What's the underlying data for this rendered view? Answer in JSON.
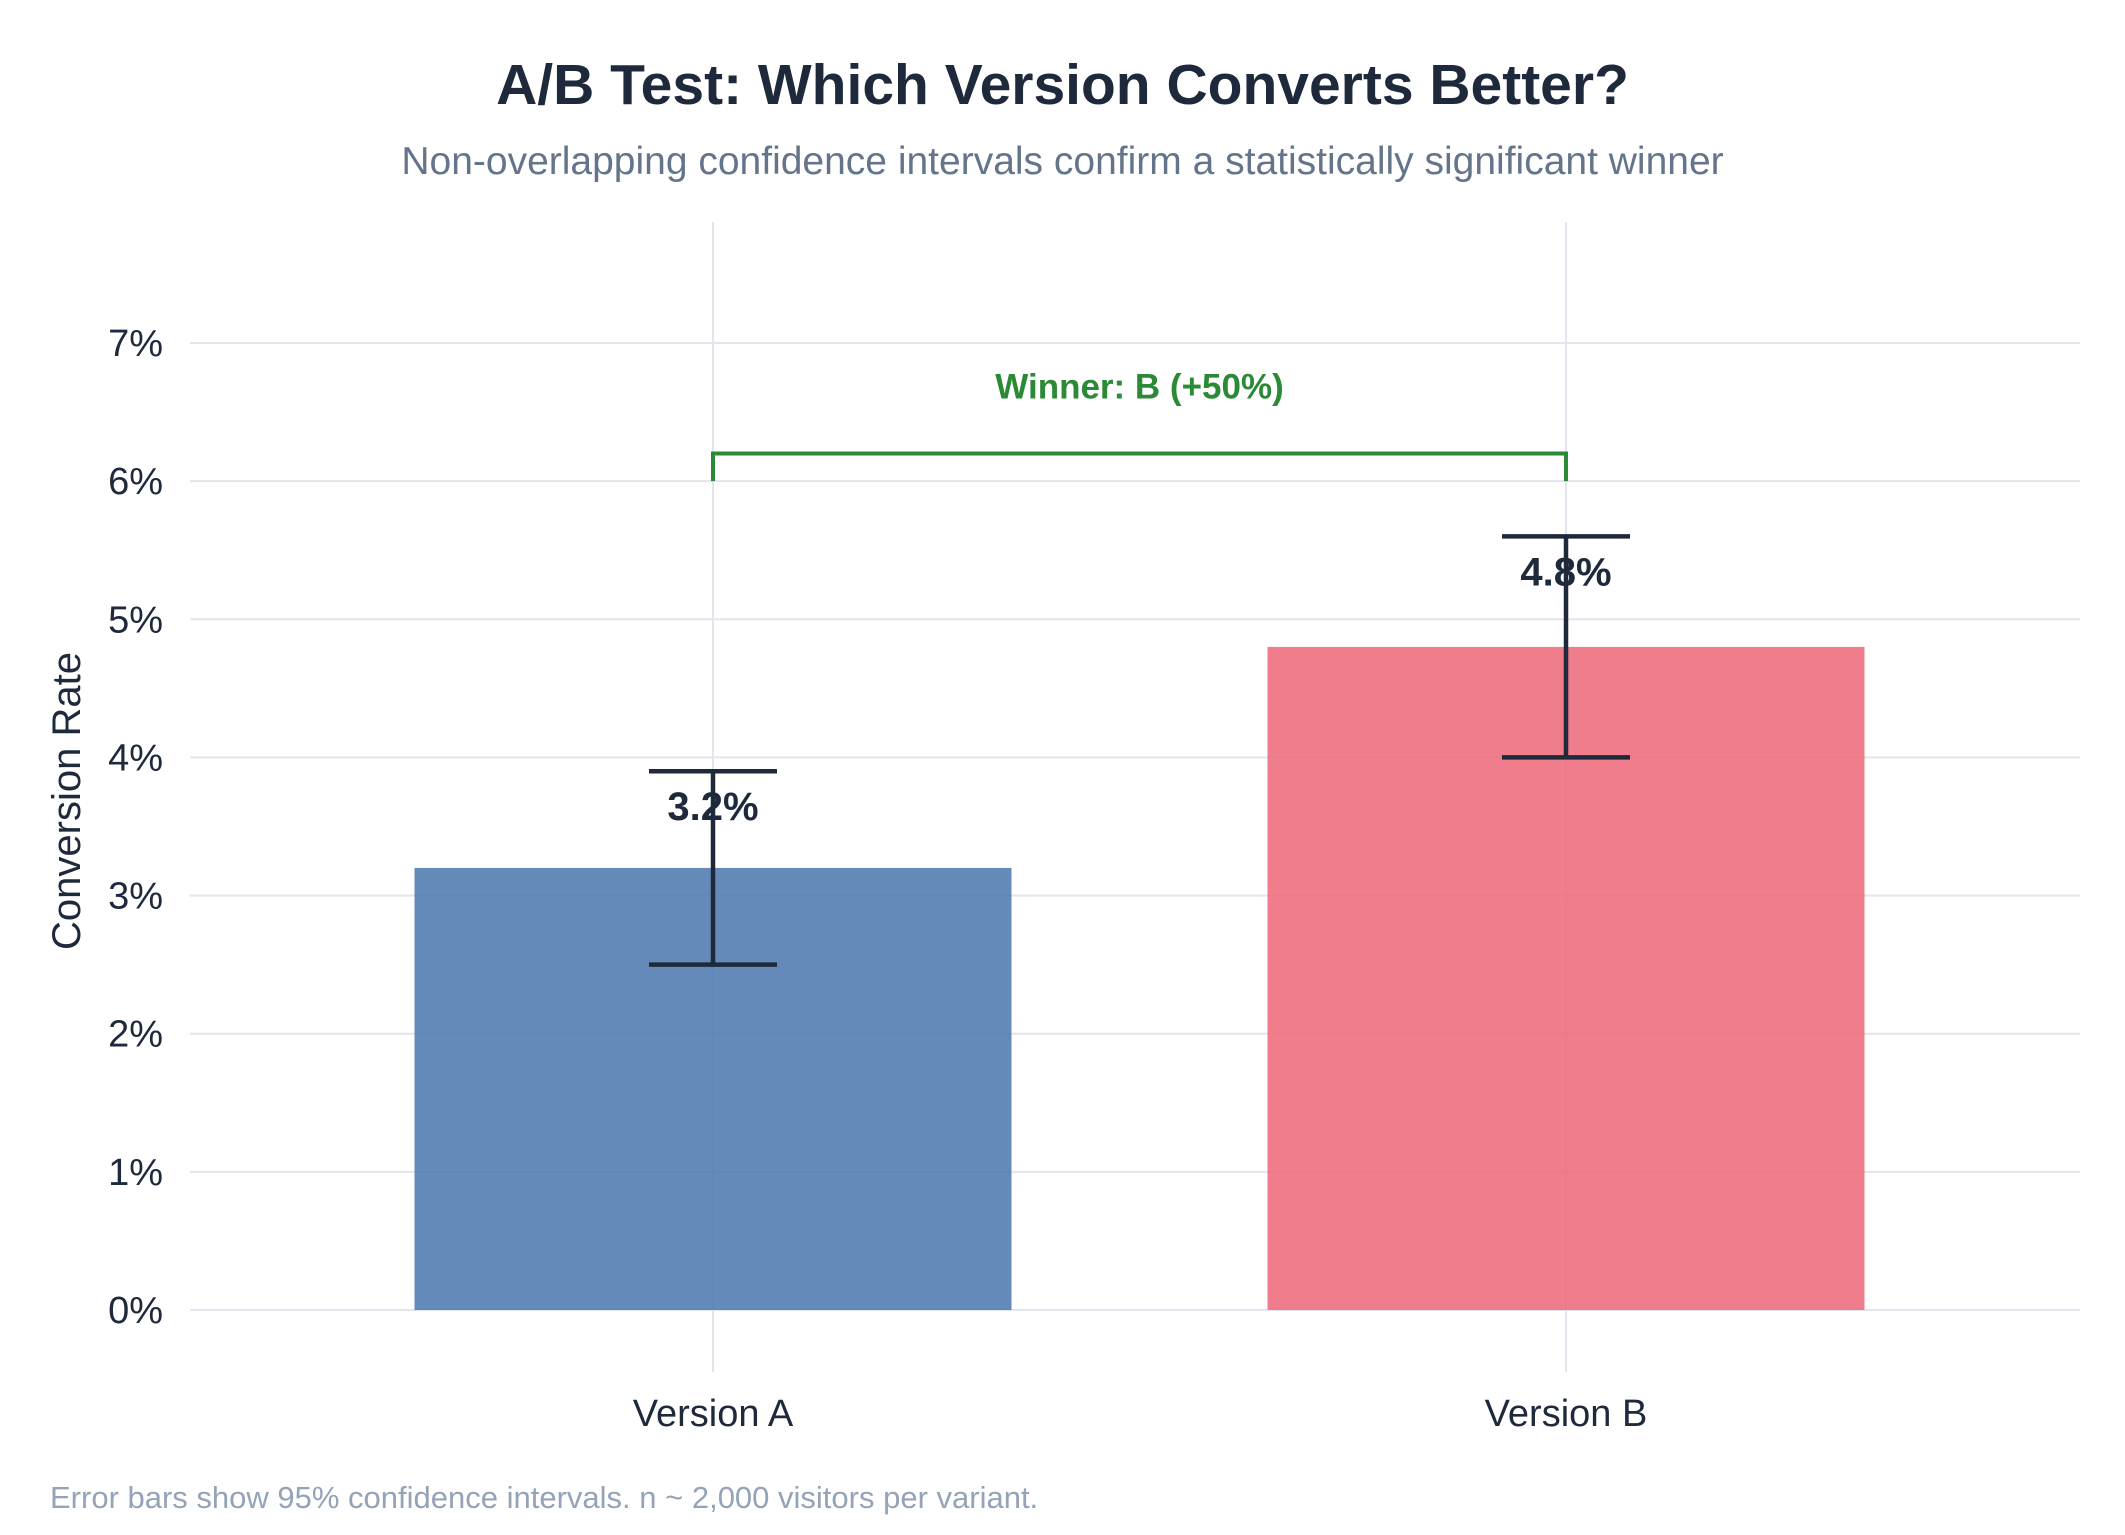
{
  "chart_data": {
    "type": "bar",
    "title": "A/B Test: Which Version Converts Better?",
    "subtitle": "Non-overlapping confidence intervals confirm a statistically significant winner",
    "ylabel": "Conversion Rate",
    "xlabel": "",
    "categories": [
      "Version A",
      "Version B"
    ],
    "values": [
      3.2,
      4.8
    ],
    "value_labels": [
      "3.2%",
      "4.8%"
    ],
    "error_bars": [
      {
        "low": 2.5,
        "high": 3.9
      },
      {
        "low": 4.0,
        "high": 5.6
      }
    ],
    "bar_colors": [
      "#4d7aae",
      "#ee6b7b"
    ],
    "ylim": [
      -0.4,
      7.9
    ],
    "yticks": [
      0,
      1,
      2,
      3,
      4,
      5,
      6,
      7
    ],
    "ytick_labels": [
      "0%",
      "1%",
      "2%",
      "3%",
      "4%",
      "5%",
      "6%",
      "7%"
    ],
    "grid": true,
    "annotation": {
      "text": "Winner: B (+50%)",
      "bracket_y": 6.2,
      "bracket_bottom": 6.0,
      "color": "#2a8a36"
    },
    "footnote": "Error bars show 95% confidence intervals. n ~ 2,000 visitors per variant."
  }
}
